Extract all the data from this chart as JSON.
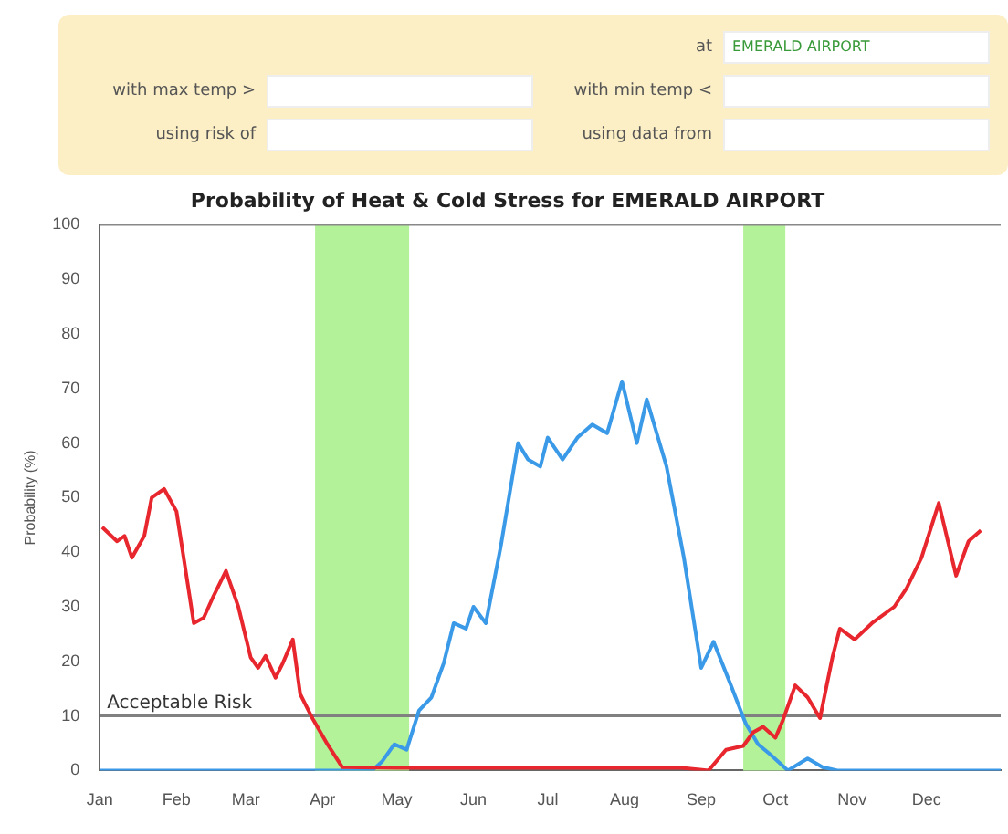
{
  "chart_data": {
    "type": "line",
    "title": "Probability of Heat & Cold Stress for EMERALD AIRPORT",
    "ylabel": "Probability (%)",
    "annotations": [
      "at",
      "EMERALD AIRPORT",
      "with max temp >",
      "with min temp <",
      "using risk of",
      "using data from"
    ],
    "xlim": [
      "--01-01",
      "--12-31"
    ],
    "ylim": [
      0,
      100
    ],
    "xticks": [
      {
        "value": "--01-01",
        "label": "Jan"
      },
      {
        "value": "--02-01",
        "label": "Feb"
      },
      {
        "value": "--03-01",
        "label": "Mar"
      },
      {
        "value": "--04-01",
        "label": "Apr"
      },
      {
        "value": "--05-01",
        "label": "May"
      },
      {
        "value": "--06-01",
        "label": "Jun"
      },
      {
        "value": "--07-01",
        "label": "Jul"
      },
      {
        "value": "--08-01",
        "label": "Aug"
      },
      {
        "value": "--09-01",
        "label": "Sep"
      },
      {
        "value": "--10-01",
        "label": "Oct"
      },
      {
        "value": "--11-01",
        "label": "Nov"
      },
      {
        "value": "--12-01",
        "label": "Dec"
      }
    ],
    "yticks": [
      0,
      10,
      20,
      30,
      40,
      50,
      60,
      70,
      80,
      90,
      100
    ],
    "grid": false,
    "legend": false,
    "marker": "none",
    "line_style": "solid",
    "ref_lines": [
      {
        "axis": "y",
        "value": 10,
        "label": "Acceptable Risk",
        "color": "#808080"
      }
    ],
    "bands": [
      {
        "axis": "x",
        "from": "--03-29",
        "to": "--05-06",
        "color": "#b4f29a"
      },
      {
        "axis": "x",
        "from": "--09-18",
        "to": "--10-05",
        "color": "#b4f29a"
      }
    ],
    "series": [
      {
        "color": "#e8262d",
        "x": [
          "--01-02",
          "--01-08",
          "--01-11",
          "--01-14",
          "--01-19",
          "--01-22",
          "--01-27",
          "--02-01",
          "--02-08",
          "--02-12",
          "--02-16",
          "--02-21",
          "--02-26",
          "--03-03",
          "--03-06",
          "--03-09",
          "--03-13",
          "--03-16",
          "--03-20",
          "--03-23",
          "--03-28",
          "--04-03",
          "--04-09",
          "--05-01",
          "--06-30",
          "--08-24",
          "--09-04",
          "--09-11",
          "--09-18",
          "--09-22",
          "--09-26",
          "--10-01",
          "--10-04",
          "--10-09",
          "--10-14",
          "--10-19",
          "--10-24",
          "--10-27",
          "--11-02",
          "--11-09",
          "--11-18",
          "--11-23",
          "--11-29",
          "--12-06",
          "--12-13",
          "--12-18",
          "--12-23"
        ],
        "values": [
          44.6,
          42,
          43,
          39,
          43,
          50,
          51.6,
          47.5,
          27,
          28,
          32,
          36.6,
          30,
          20.7,
          18.8,
          21,
          17,
          19.7,
          24,
          14,
          9.5,
          4.8,
          0.6,
          0.5,
          0.5,
          0.5,
          0,
          3.8,
          4.5,
          7,
          8,
          6,
          9.2,
          15.6,
          13.4,
          9.6,
          20.7,
          26,
          24,
          27,
          30,
          33.4,
          39,
          49,
          35.7,
          42,
          44
        ]
      },
      {
        "color": "#3a9ae8",
        "x": [
          "--01-01",
          "--03-02",
          "--04-21",
          "--04-25",
          "--04-30",
          "--05-05",
          "--05-10",
          "--05-15",
          "--05-20",
          "--05-24",
          "--05-29",
          "--06-01",
          "--06-06",
          "--06-12",
          "--06-19",
          "--06-23",
          "--06-28",
          "--07-01",
          "--07-07",
          "--07-13",
          "--07-19",
          "--07-25",
          "--07-31",
          "--08-06",
          "--08-10",
          "--08-18",
          "--08-25",
          "--09-01",
          "--09-06",
          "--09-13",
          "--09-19",
          "--09-24",
          "--09-29",
          "--10-06",
          "--10-14",
          "--10-20",
          "--10-26",
          "--11-27",
          "--12-31"
        ],
        "values": [
          0,
          0,
          0,
          1.6,
          4.8,
          3.8,
          11,
          13.4,
          19.7,
          27,
          26,
          30,
          27,
          41,
          60,
          57,
          55.7,
          61,
          57,
          61,
          63.4,
          61.8,
          71.3,
          60,
          68,
          55.7,
          39,
          18.8,
          23.6,
          15.6,
          8.6,
          4.8,
          2.9,
          0,
          2.2,
          0.6,
          0,
          0,
          0
        ]
      }
    ]
  }
}
